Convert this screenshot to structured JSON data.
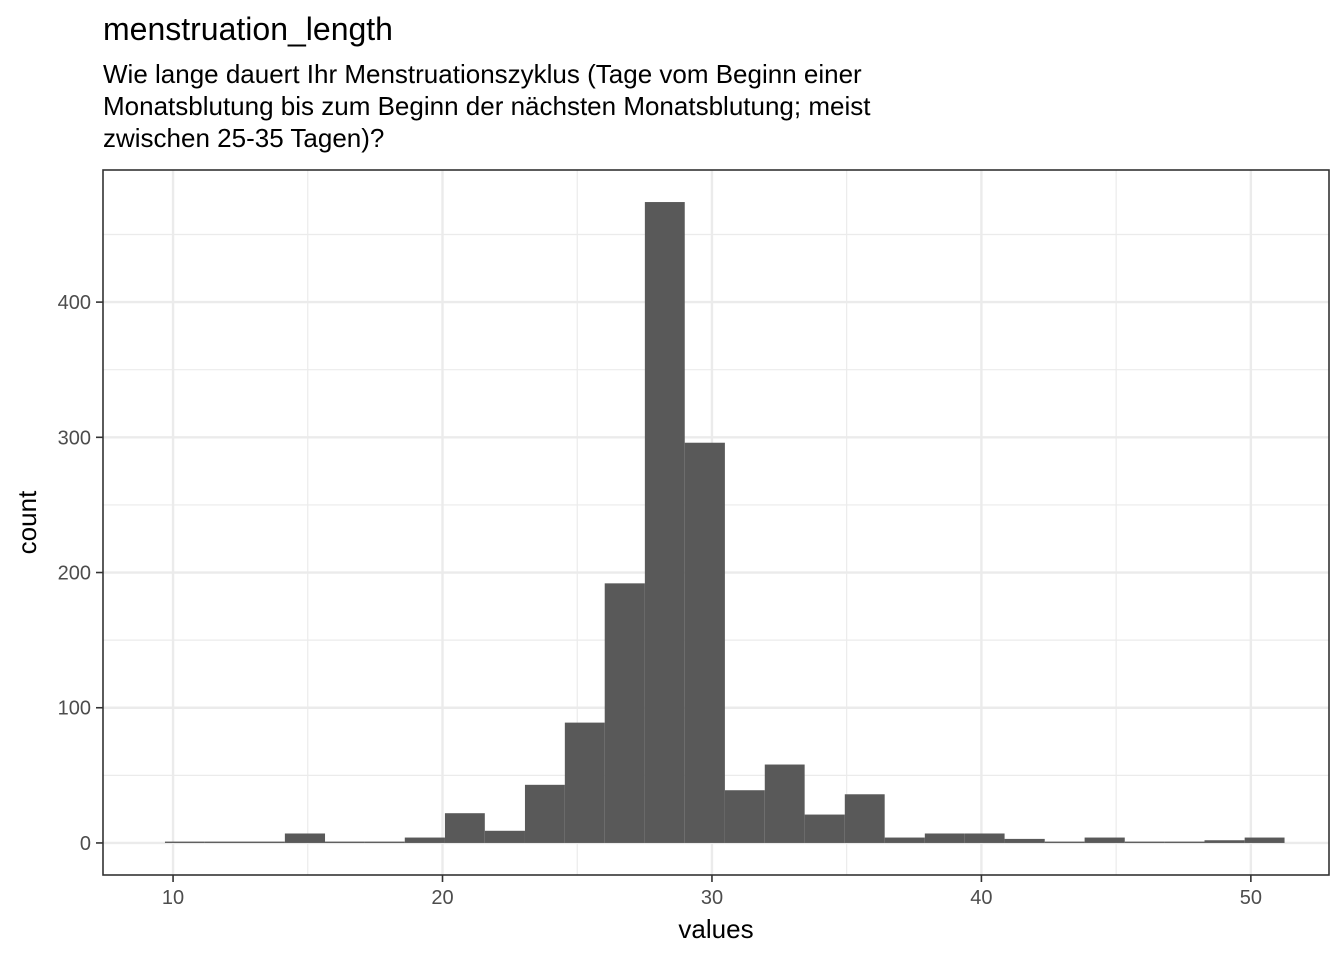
{
  "chart_data": {
    "type": "histogram",
    "title": "menstruation_length",
    "subtitle_lines": [
      "Wie lange dauert Ihr Menstruationszyklus (Tage vom Beginn einer",
      "Monatsblutung bis zum Beginn der nächsten Monatsblutung; meist",
      "zwischen 25-35 Tagen)?"
    ],
    "xlabel": "values",
    "ylabel": "count",
    "xlim": [
      7.4,
      52.9
    ],
    "ylim": [
      -23.7,
      497.7
    ],
    "x_ticks": [
      10,
      20,
      30,
      40,
      50
    ],
    "y_ticks": [
      0,
      100,
      200,
      300,
      400
    ],
    "x_minor_ticks": [
      15,
      25,
      35,
      45
    ],
    "y_minor_ticks": [
      50,
      150,
      250,
      350,
      450
    ],
    "grid": true,
    "bar_color": "#595959",
    "bins": [
      {
        "x0": 9.7,
        "x1": 11.18,
        "count": 1
      },
      {
        "x0": 11.18,
        "x1": 12.67,
        "count": 1
      },
      {
        "x0": 12.67,
        "x1": 14.15,
        "count": 1
      },
      {
        "x0": 14.15,
        "x1": 15.64,
        "count": 7
      },
      {
        "x0": 15.64,
        "x1": 17.12,
        "count": 1
      },
      {
        "x0": 17.12,
        "x1": 18.6,
        "count": 1
      },
      {
        "x0": 18.6,
        "x1": 20.09,
        "count": 4
      },
      {
        "x0": 20.09,
        "x1": 21.57,
        "count": 22
      },
      {
        "x0": 21.57,
        "x1": 23.06,
        "count": 9
      },
      {
        "x0": 23.06,
        "x1": 24.54,
        "count": 43
      },
      {
        "x0": 24.54,
        "x1": 26.02,
        "count": 89
      },
      {
        "x0": 26.02,
        "x1": 27.51,
        "count": 192
      },
      {
        "x0": 27.51,
        "x1": 28.99,
        "count": 474
      },
      {
        "x0": 28.99,
        "x1": 30.48,
        "count": 296
      },
      {
        "x0": 30.48,
        "x1": 31.96,
        "count": 39
      },
      {
        "x0": 31.96,
        "x1": 33.44,
        "count": 58
      },
      {
        "x0": 33.44,
        "x1": 34.93,
        "count": 21
      },
      {
        "x0": 34.93,
        "x1": 36.41,
        "count": 36
      },
      {
        "x0": 36.41,
        "x1": 37.9,
        "count": 4
      },
      {
        "x0": 37.9,
        "x1": 39.38,
        "count": 7
      },
      {
        "x0": 39.38,
        "x1": 40.86,
        "count": 7
      },
      {
        "x0": 40.86,
        "x1": 42.35,
        "count": 3
      },
      {
        "x0": 42.35,
        "x1": 43.83,
        "count": 1
      },
      {
        "x0": 43.83,
        "x1": 45.32,
        "count": 4
      },
      {
        "x0": 45.32,
        "x1": 46.8,
        "count": 1
      },
      {
        "x0": 46.8,
        "x1": 48.28,
        "count": 1
      },
      {
        "x0": 48.28,
        "x1": 49.77,
        "count": 2
      },
      {
        "x0": 49.77,
        "x1": 51.25,
        "count": 4
      }
    ]
  }
}
